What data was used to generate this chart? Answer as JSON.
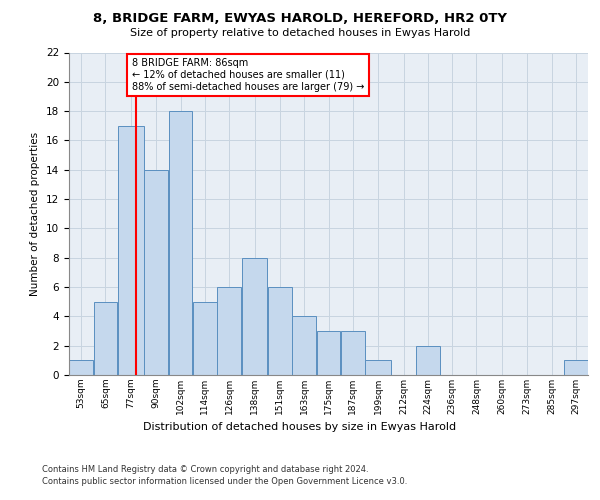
{
  "title": "8, BRIDGE FARM, EWYAS HAROLD, HEREFORD, HR2 0TY",
  "subtitle": "Size of property relative to detached houses in Ewyas Harold",
  "xlabel": "Distribution of detached houses by size in Ewyas Harold",
  "ylabel": "Number of detached properties",
  "bin_labels": [
    "53sqm",
    "65sqm",
    "77sqm",
    "90sqm",
    "102sqm",
    "114sqm",
    "126sqm",
    "138sqm",
    "151sqm",
    "163sqm",
    "175sqm",
    "187sqm",
    "199sqm",
    "212sqm",
    "224sqm",
    "236sqm",
    "248sqm",
    "260sqm",
    "273sqm",
    "285sqm",
    "297sqm"
  ],
  "bar_heights": [
    1,
    5,
    17,
    14,
    18,
    5,
    6,
    8,
    6,
    4,
    3,
    3,
    1,
    0,
    2,
    0,
    0,
    0,
    0,
    0,
    1
  ],
  "bar_color": "#c5d8ed",
  "bar_edge_color": "#5a8fc0",
  "vline_x": 86,
  "vline_color": "red",
  "annotation_text": "8 BRIDGE FARM: 86sqm\n← 12% of detached houses are smaller (11)\n88% of semi-detached houses are larger (79) →",
  "annotation_box_color": "white",
  "annotation_box_edgecolor": "red",
  "ylim": [
    0,
    22
  ],
  "yticks": [
    0,
    2,
    4,
    6,
    8,
    10,
    12,
    14,
    16,
    18,
    20,
    22
  ],
  "grid_color": "#c8d4e0",
  "plot_bg_color": "#e8eef5",
  "footer_line1": "Contains HM Land Registry data © Crown copyright and database right 2024.",
  "footer_line2": "Contains public sector information licensed under the Open Government Licence v3.0.",
  "bin_edges": [
    53,
    65,
    77,
    90,
    102,
    114,
    126,
    138,
    151,
    163,
    175,
    187,
    199,
    212,
    224,
    236,
    248,
    260,
    273,
    285,
    297,
    309
  ]
}
